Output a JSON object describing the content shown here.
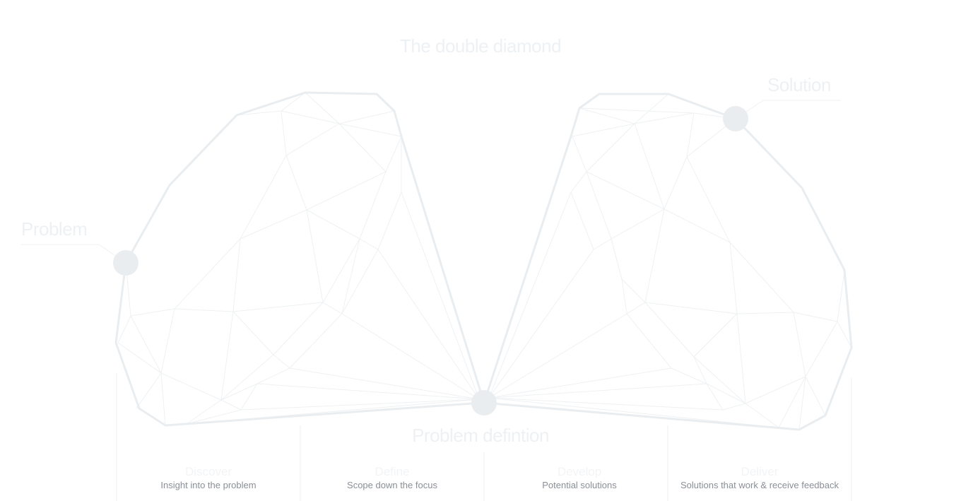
{
  "title": "The double diamond",
  "labels": {
    "problem": "Problem",
    "solution": "Solution",
    "definition": "Problem defintion"
  },
  "phases": [
    {
      "name": "Discover",
      "description": "Insight into the problem"
    },
    {
      "name": "Define",
      "description": "Scope down the focus"
    },
    {
      "name": "Develop",
      "description": "Potential solutions"
    },
    {
      "name": "Deliver",
      "description": "Solutions that work & receive feedback"
    }
  ],
  "colors": {
    "outline": "#e9edf0",
    "mesh": "#eef1f3",
    "node": "#e9edf0",
    "heading": "#eef1f4",
    "description": "#8a8f96"
  }
}
